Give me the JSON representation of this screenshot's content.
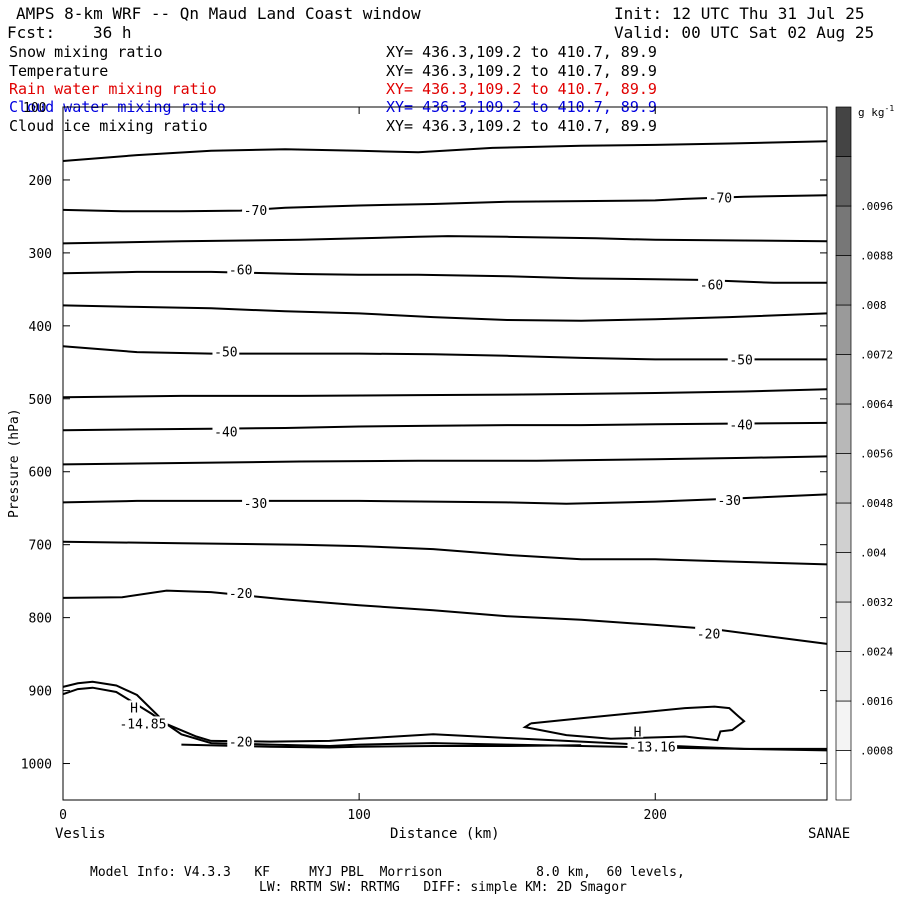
{
  "header": {
    "title": "AMPS 8-km WRF -- Qn Maud Land Coast window",
    "init": "Init: 12 UTC Thu 31 Jul 25",
    "fcst_label": "Fcst:",
    "fcst_value": "36 h",
    "valid": "Valid: 00 UTC Sat 02 Aug 25"
  },
  "fields": [
    {
      "name": "Snow mixing ratio",
      "xy": "XY= 436.3,109.2 to 410.7, 89.9",
      "color": "#000000"
    },
    {
      "name": "Temperature",
      "xy": "XY= 436.3,109.2 to 410.7, 89.9",
      "color": "#000000"
    },
    {
      "name": "Rain water mixing ratio",
      "xy": "XY= 436.3,109.2 to 410.7, 89.9",
      "color": "#e00000"
    },
    {
      "name": "Cloud water mixing ratio",
      "xy": "XY= 436.3,109.2 to 410.7, 89.9",
      "color": "#0000e0"
    },
    {
      "name": "Cloud ice mixing ratio",
      "xy": "XY= 436.3,109.2 to 410.7, 89.9",
      "color": "#000000"
    }
  ],
  "footer": {
    "line1": "Model Info: V4.3.3   KF     MYJ PBL  Morrison            8.0 km,  60 levels,",
    "line2": "LW: RRTM SW: RRTMG   DIFF: simple KM: 2D Smagor"
  },
  "chart_data": {
    "type": "line",
    "title": "",
    "xlabel": "Distance (km)",
    "ylabel": "Pressure (hPa)",
    "xlim": [
      0,
      258
    ],
    "ylim": [
      1050,
      100
    ],
    "x_ticks": [
      0,
      100,
      200
    ],
    "y_ticks": [
      200,
      300,
      400,
      500,
      600,
      700,
      800,
      900,
      1000
    ],
    "y_tick_label_top": "100",
    "x_endpoints": {
      "left": "Veslis",
      "right": "SANAE"
    },
    "grid": false,
    "colorbar": {
      "unit": "g kg",
      "unit_exponent": "-1",
      "labels": [
        ".0008",
        ".0016",
        ".0024",
        ".0032",
        ".004",
        ".0048",
        ".0056",
        ".0064",
        ".0072",
        ".008",
        ".0088",
        ".0096"
      ],
      "shade_colors": [
        "#ffffff",
        "#f4f4f4",
        "#ececec",
        "#e4e4e4",
        "#dbdbdb",
        "#d0d0d0",
        "#c4c4c4",
        "#b8b8b8",
        "#aaaaaa",
        "#9a9a9a",
        "#8a8a8a",
        "#777777",
        "#626262",
        "#444444"
      ]
    },
    "series": [
      {
        "points": [
          [
            0,
            174
          ],
          [
            25,
            166
          ],
          [
            50,
            160
          ],
          [
            75,
            158
          ],
          [
            100,
            160
          ],
          [
            120,
            162
          ],
          [
            145,
            156
          ],
          [
            175,
            153
          ],
          [
            200,
            152
          ],
          [
            225,
            150
          ],
          [
            258,
            147
          ]
        ]
      },
      {
        "points": [
          [
            0,
            241
          ],
          [
            20,
            243
          ],
          [
            40,
            243
          ],
          [
            60,
            242
          ],
          [
            75,
            238
          ],
          [
            100,
            235
          ],
          [
            125,
            233
          ],
          [
            150,
            230
          ],
          [
            175,
            229
          ],
          [
            200,
            228
          ],
          [
            210,
            226
          ],
          [
            230,
            223
          ],
          [
            258,
            221
          ]
        ]
      },
      {
        "points": [
          [
            0,
            287
          ],
          [
            40,
            284
          ],
          [
            80,
            282
          ],
          [
            120,
            278
          ],
          [
            130,
            277
          ],
          [
            150,
            278
          ],
          [
            180,
            280
          ],
          [
            200,
            282
          ],
          [
            230,
            283
          ],
          [
            258,
            284
          ]
        ]
      },
      {
        "points": [
          [
            0,
            328
          ],
          [
            25,
            326
          ],
          [
            50,
            326
          ],
          [
            80,
            329
          ],
          [
            100,
            330
          ],
          [
            120,
            330
          ],
          [
            150,
            332
          ],
          [
            175,
            335
          ],
          [
            200,
            336
          ],
          [
            215,
            337
          ],
          [
            240,
            341
          ],
          [
            258,
            341
          ]
        ]
      },
      {
        "points": [
          [
            0,
            372
          ],
          [
            25,
            374
          ],
          [
            50,
            376
          ],
          [
            75,
            380
          ],
          [
            100,
            383
          ],
          [
            125,
            388
          ],
          [
            150,
            392
          ],
          [
            175,
            393
          ],
          [
            200,
            391
          ],
          [
            225,
            388
          ],
          [
            258,
            383
          ]
        ]
      },
      {
        "points": [
          [
            0,
            428
          ],
          [
            25,
            436
          ],
          [
            50,
            438
          ],
          [
            75,
            438
          ],
          [
            100,
            438
          ],
          [
            125,
            439
          ],
          [
            150,
            441
          ],
          [
            175,
            444
          ],
          [
            200,
            446
          ],
          [
            225,
            446
          ],
          [
            258,
            446
          ]
        ]
      },
      {
        "points": [
          [
            0,
            498
          ],
          [
            40,
            496
          ],
          [
            80,
            496
          ],
          [
            120,
            495
          ],
          [
            160,
            494
          ],
          [
            200,
            492
          ],
          [
            230,
            490
          ],
          [
            258,
            487
          ]
        ]
      },
      {
        "points": [
          [
            0,
            543
          ],
          [
            25,
            542
          ],
          [
            50,
            541
          ],
          [
            75,
            540
          ],
          [
            100,
            538
          ],
          [
            125,
            537
          ],
          [
            150,
            536
          ],
          [
            175,
            536
          ],
          [
            200,
            535
          ],
          [
            225,
            534
          ],
          [
            258,
            533
          ]
        ]
      },
      {
        "points": [
          [
            0,
            590
          ],
          [
            40,
            588
          ],
          [
            80,
            586
          ],
          [
            120,
            585
          ],
          [
            160,
            585
          ],
          [
            200,
            583
          ],
          [
            230,
            581
          ],
          [
            258,
            579
          ]
        ]
      },
      {
        "points": [
          [
            0,
            642
          ],
          [
            25,
            640
          ],
          [
            50,
            640
          ],
          [
            75,
            640
          ],
          [
            100,
            640
          ],
          [
            125,
            641
          ],
          [
            150,
            642
          ],
          [
            170,
            644
          ],
          [
            200,
            641
          ],
          [
            225,
            637
          ],
          [
            258,
            631
          ]
        ]
      },
      {
        "points": [
          [
            0,
            696
          ],
          [
            40,
            698
          ],
          [
            80,
            700
          ],
          [
            100,
            702
          ],
          [
            125,
            706
          ],
          [
            150,
            714
          ],
          [
            175,
            720
          ],
          [
            200,
            720
          ],
          [
            225,
            723
          ],
          [
            258,
            727
          ]
        ]
      },
      {
        "points": [
          [
            0,
            773
          ],
          [
            20,
            772
          ],
          [
            35,
            763
          ],
          [
            50,
            765
          ],
          [
            75,
            775
          ],
          [
            100,
            783
          ],
          [
            125,
            790
          ],
          [
            150,
            798
          ],
          [
            175,
            803
          ],
          [
            200,
            810
          ],
          [
            220,
            816
          ],
          [
            258,
            836
          ]
        ]
      },
      {
        "points": [
          [
            0,
            895
          ],
          [
            5,
            890
          ],
          [
            10,
            888
          ],
          [
            18,
            893
          ],
          [
            25,
            906
          ],
          [
            35,
            946
          ],
          [
            45,
            963
          ],
          [
            50,
            969
          ],
          [
            70,
            970
          ],
          [
            90,
            969
          ],
          [
            100,
            966
          ],
          [
            125,
            960
          ],
          [
            150,
            965
          ],
          [
            175,
            970
          ],
          [
            200,
            975
          ],
          [
            230,
            980
          ],
          [
            258,
            980
          ]
        ]
      },
      {
        "points": [
          [
            0,
            905
          ],
          [
            5,
            898
          ],
          [
            10,
            896
          ],
          [
            18,
            902
          ],
          [
            30,
            932
          ],
          [
            40,
            960
          ],
          [
            50,
            972
          ],
          [
            70,
            974
          ],
          [
            90,
            976
          ],
          [
            100,
            974
          ],
          [
            125,
            972
          ],
          [
            150,
            974
          ],
          [
            175,
            976
          ],
          [
            200,
            978
          ],
          [
            230,
            980
          ],
          [
            258,
            982
          ]
        ]
      },
      {
        "points": [
          [
            158,
            945
          ],
          [
            175,
            938
          ],
          [
            195,
            930
          ],
          [
            210,
            924
          ],
          [
            220,
            922
          ],
          [
            225,
            924
          ],
          [
            228,
            935
          ],
          [
            230,
            942
          ],
          [
            226,
            954
          ],
          [
            222,
            956
          ],
          [
            221,
            968
          ],
          [
            210,
            963
          ],
          [
            185,
            966
          ],
          [
            170,
            961
          ],
          [
            156,
            950
          ],
          [
            158,
            945
          ]
        ]
      },
      {
        "points": [
          [
            40,
            974
          ],
          [
            70,
            977
          ],
          [
            90,
            978
          ],
          [
            100,
            977
          ],
          [
            125,
            976
          ],
          [
            150,
            976
          ],
          [
            175,
            975
          ]
        ]
      }
    ],
    "labels": [
      {
        "text": "-70",
        "x": 65,
        "y": 241
      },
      {
        "text": "-70",
        "x": 222,
        "y": 224
      },
      {
        "text": "-60",
        "x": 60,
        "y": 323
      },
      {
        "text": "-60",
        "x": 219,
        "y": 343
      },
      {
        "text": "-50",
        "x": 55,
        "y": 435
      },
      {
        "text": "-50",
        "x": 229,
        "y": 446
      },
      {
        "text": "-40",
        "x": 55,
        "y": 545
      },
      {
        "text": "-40",
        "x": 229,
        "y": 535
      },
      {
        "text": "-30",
        "x": 65,
        "y": 643
      },
      {
        "text": "-30",
        "x": 225,
        "y": 639
      },
      {
        "text": "-20",
        "x": 60,
        "y": 766
      },
      {
        "text": "-20",
        "x": 218,
        "y": 822
      },
      {
        "text": "-20",
        "x": 60,
        "y": 970
      },
      {
        "text": "H",
        "x": 24,
        "y": 923
      },
      {
        "text": "-14.85",
        "x": 27,
        "y": 945
      },
      {
        "text": "H",
        "x": 194,
        "y": 956
      },
      {
        "text": "-13.16",
        "x": 199,
        "y": 977
      }
    ]
  }
}
